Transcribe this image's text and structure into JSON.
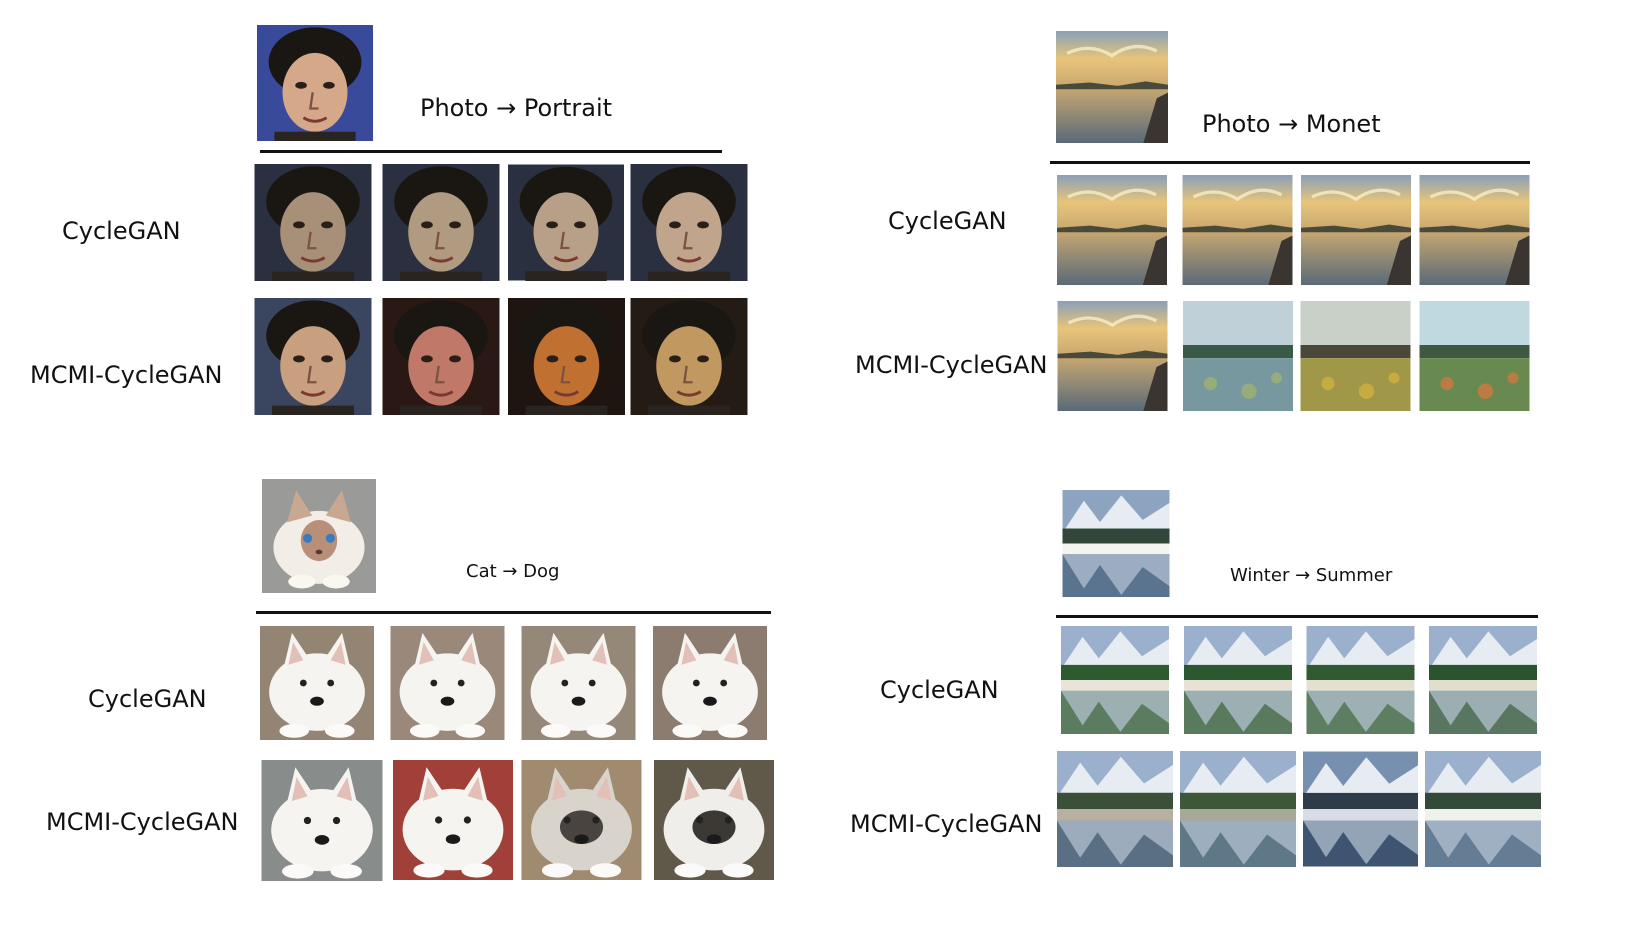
{
  "panels": {
    "portrait": {
      "title": "Photo → Portrait",
      "rows": [
        {
          "label": "CycleGAN"
        },
        {
          "label": "MCMI-CycleGAN"
        }
      ]
    },
    "monet": {
      "title": "Photo → Monet",
      "rows": [
        {
          "label": "CycleGAN"
        },
        {
          "label": "MCMI-CycleGAN"
        }
      ]
    },
    "dog": {
      "title": "Cat → Dog",
      "rows": [
        {
          "label": "CycleGAN"
        },
        {
          "label": "MCMI-CycleGAN"
        }
      ]
    },
    "summer": {
      "title": "Winter → Summer",
      "rows": [
        {
          "label": "CycleGAN"
        },
        {
          "label": "MCMI-CycleGAN"
        }
      ]
    }
  }
}
